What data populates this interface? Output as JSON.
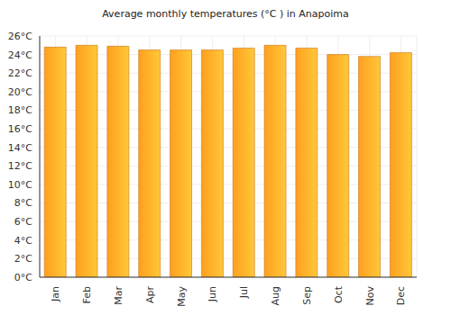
{
  "chart_data": {
    "type": "bar",
    "title": "Average monthly temperatures (°C ) in Anapoima",
    "categories": [
      "Jan",
      "Feb",
      "Mar",
      "Apr",
      "May",
      "Jun",
      "Jul",
      "Aug",
      "Sep",
      "Oct",
      "Nov",
      "Dec"
    ],
    "values": [
      24.8,
      25.0,
      24.9,
      24.5,
      24.5,
      24.5,
      24.7,
      25.0,
      24.7,
      24.0,
      23.8,
      24.2
    ],
    "color": "#ff9f1f",
    "ylim": [
      0,
      26
    ],
    "yticks": [
      {
        "value": 0,
        "label": "0°C"
      },
      {
        "value": 2,
        "label": "2°C"
      },
      {
        "value": 4,
        "label": "4°C"
      },
      {
        "value": 6,
        "label": "6°C"
      },
      {
        "value": 8,
        "label": "8°C"
      },
      {
        "value": 10,
        "label": "10°C"
      },
      {
        "value": 12,
        "label": "12°C"
      },
      {
        "value": 14,
        "label": "14°C"
      },
      {
        "value": 16,
        "label": "16°C"
      },
      {
        "value": 18,
        "label": "18°C"
      },
      {
        "value": 20,
        "label": "20°C"
      },
      {
        "value": 22,
        "label": "22°C"
      },
      {
        "value": 24,
        "label": "24°C"
      },
      {
        "value": 26,
        "label": "26°C"
      }
    ],
    "grid": true
  }
}
